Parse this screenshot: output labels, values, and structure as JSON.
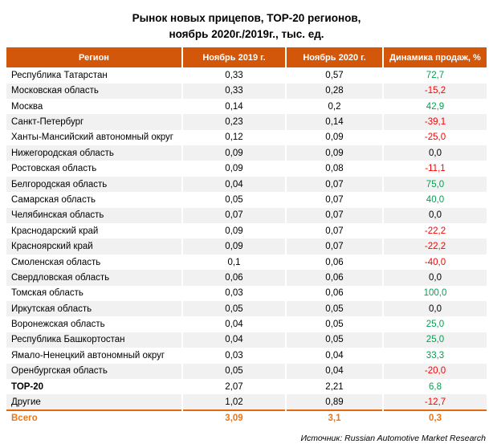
{
  "title": {
    "line1": "Рынок новых прицепов, TOP-20 регионов,",
    "line2": "ноябрь 2020г./2019г., тыс. ед."
  },
  "source": "Источник: Russian Automotive Market Research",
  "colors": {
    "header_bg": "#D2570B",
    "row_stripe": "#F1F1F1",
    "positive": "#00A24F",
    "negative": "#FF0000",
    "total_accent": "#E8761B",
    "total_rule": "#E2690D"
  },
  "chart_data": {
    "type": "table",
    "title": "Рынок новых прицепов, TOP-20 регионов, ноябрь 2020г./2019г., тыс. ед.",
    "columns": [
      "Регион",
      "Ноябрь 2019 г.",
      "Ноябрь 2020 г.",
      "Динамика продаж, %"
    ],
    "rows": [
      {
        "region": "Республика Татарстан",
        "nov2019": "0,33",
        "nov2020": "0,57",
        "dynamics": "72,7",
        "trend": "up",
        "kind": "region"
      },
      {
        "region": "Московская область",
        "nov2019": "0,33",
        "nov2020": "0,28",
        "dynamics": "-15,2",
        "trend": "down",
        "kind": "region"
      },
      {
        "region": "Москва",
        "nov2019": "0,14",
        "nov2020": "0,2",
        "dynamics": "42,9",
        "trend": "up",
        "kind": "region"
      },
      {
        "region": "Санкт-Петербург",
        "nov2019": "0,23",
        "nov2020": "0,14",
        "dynamics": "-39,1",
        "trend": "down",
        "kind": "region"
      },
      {
        "region": "Ханты-Мансийский автономный округ",
        "nov2019": "0,12",
        "nov2020": "0,09",
        "dynamics": "-25,0",
        "trend": "down",
        "kind": "region"
      },
      {
        "region": "Нижегородская область",
        "nov2019": "0,09",
        "nov2020": "0,09",
        "dynamics": "0,0",
        "trend": "flat",
        "kind": "region"
      },
      {
        "region": "Ростовская область",
        "nov2019": "0,09",
        "nov2020": "0,08",
        "dynamics": "-11,1",
        "trend": "down",
        "kind": "region"
      },
      {
        "region": "Белгородская область",
        "nov2019": "0,04",
        "nov2020": "0,07",
        "dynamics": "75,0",
        "trend": "up",
        "kind": "region"
      },
      {
        "region": "Самарская область",
        "nov2019": "0,05",
        "nov2020": "0,07",
        "dynamics": "40,0",
        "trend": "up",
        "kind": "region"
      },
      {
        "region": "Челябинская область",
        "nov2019": "0,07",
        "nov2020": "0,07",
        "dynamics": "0,0",
        "trend": "flat",
        "kind": "region"
      },
      {
        "region": "Краснодарский край",
        "nov2019": "0,09",
        "nov2020": "0,07",
        "dynamics": "-22,2",
        "trend": "down",
        "kind": "region"
      },
      {
        "region": "Красноярский край",
        "nov2019": "0,09",
        "nov2020": "0,07",
        "dynamics": "-22,2",
        "trend": "down",
        "kind": "region"
      },
      {
        "region": "Смоленская область",
        "nov2019": "0,1",
        "nov2020": "0,06",
        "dynamics": "-40,0",
        "trend": "down",
        "kind": "region"
      },
      {
        "region": "Свердловская область",
        "nov2019": "0,06",
        "nov2020": "0,06",
        "dynamics": "0,0",
        "trend": "flat",
        "kind": "region"
      },
      {
        "region": "Томская область",
        "nov2019": "0,03",
        "nov2020": "0,06",
        "dynamics": "100,0",
        "trend": "up",
        "kind": "region"
      },
      {
        "region": "Иркутская область",
        "nov2019": "0,05",
        "nov2020": "0,05",
        "dynamics": "0,0",
        "trend": "flat",
        "kind": "region"
      },
      {
        "region": "Воронежская область",
        "nov2019": "0,04",
        "nov2020": "0,05",
        "dynamics": "25,0",
        "trend": "up",
        "kind": "region"
      },
      {
        "region": "Республика Башкортостан",
        "nov2019": "0,04",
        "nov2020": "0,05",
        "dynamics": "25,0",
        "trend": "up",
        "kind": "region"
      },
      {
        "region": "Ямало-Ненецкий автономный округ",
        "nov2019": "0,03",
        "nov2020": "0,04",
        "dynamics": "33,3",
        "trend": "up",
        "kind": "region"
      },
      {
        "region": "Оренбургская область",
        "nov2019": "0,05",
        "nov2020": "0,04",
        "dynamics": "-20,0",
        "trend": "down",
        "kind": "region"
      },
      {
        "region": "TOP-20",
        "nov2019": "2,07",
        "nov2020": "2,21",
        "dynamics": "6,8",
        "trend": "up",
        "kind": "summary"
      },
      {
        "region": "Другие",
        "nov2019": "1,02",
        "nov2020": "0,89",
        "dynamics": "-12,7",
        "trend": "down",
        "kind": "region"
      },
      {
        "region": "Всего",
        "nov2019": "3,09",
        "nov2020": "3,1",
        "dynamics": "0,3",
        "trend": "total",
        "kind": "total"
      }
    ]
  }
}
